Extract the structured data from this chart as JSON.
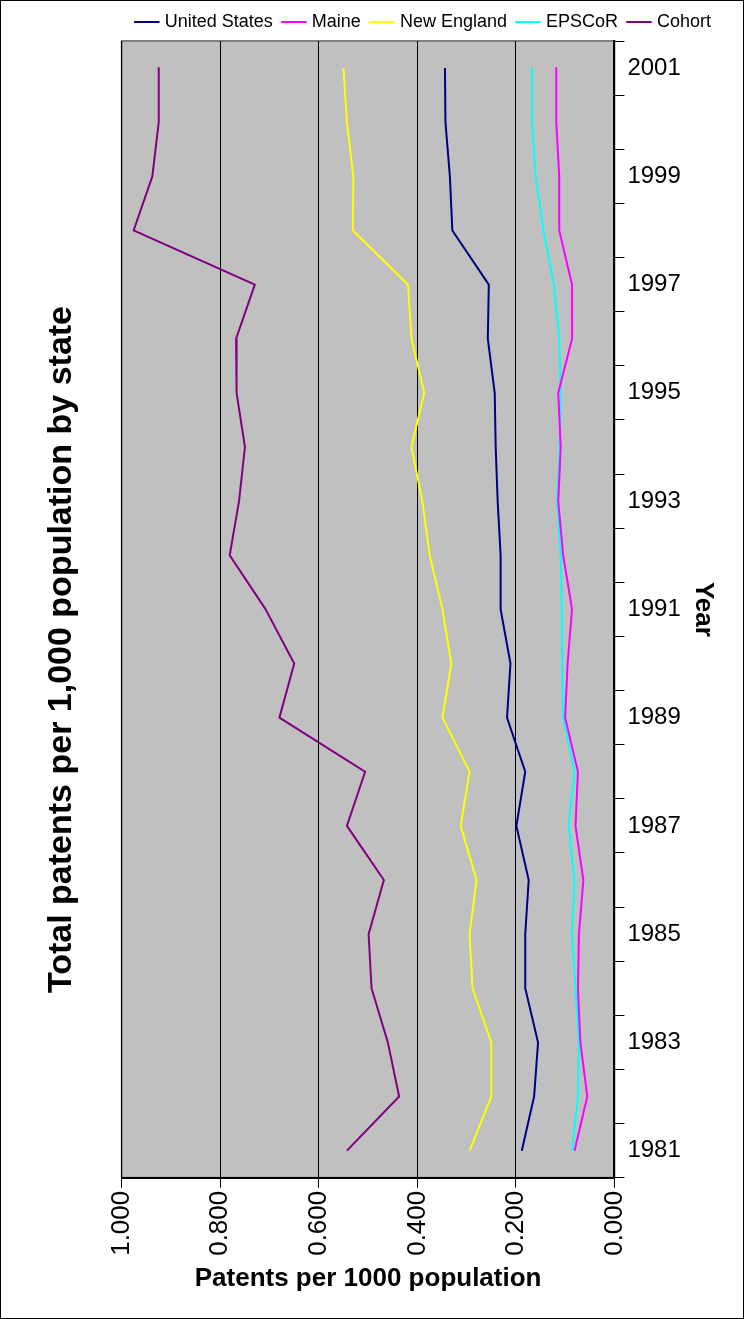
{
  "chart_data": {
    "type": "line",
    "orientation": "horizontal",
    "title": "Total patents per 1,000 population by state",
    "xlabel": "Patents per 1000 population",
    "ylabel": "Year",
    "categories": [
      "2001",
      null,
      "1999",
      null,
      "1997",
      null,
      "1995",
      null,
      "1993",
      null,
      "1991",
      null,
      "1989",
      null,
      "1987",
      null,
      "1985",
      null,
      "1983",
      null,
      "1981"
    ],
    "series": [
      {
        "name": "United States",
        "color": "#000080",
        "values": [
          0.344,
          0.343,
          0.334,
          0.329,
          0.255,
          0.257,
          0.243,
          0.241,
          0.237,
          0.231,
          0.231,
          0.211,
          0.218,
          0.181,
          0.199,
          0.174,
          0.181,
          0.181,
          0.155,
          0.163,
          0.188
        ]
      },
      {
        "name": "Maine",
        "color": "#ff00ff",
        "values": [
          0.118,
          0.118,
          0.112,
          0.112,
          0.086,
          0.086,
          0.114,
          0.109,
          0.114,
          0.104,
          0.086,
          0.095,
          0.1,
          0.074,
          0.079,
          0.063,
          0.072,
          0.074,
          0.069,
          0.055,
          0.081
        ]
      },
      {
        "name": "New England",
        "color": "#ffff00",
        "values": [
          0.55,
          0.543,
          0.53,
          0.531,
          0.419,
          0.412,
          0.386,
          0.412,
          0.39,
          0.375,
          0.349,
          0.331,
          0.349,
          0.294,
          0.312,
          0.28,
          0.294,
          0.288,
          0.25,
          0.25,
          0.294
        ]
      },
      {
        "name": "EPSCoR",
        "color": "#00ffff",
        "values": [
          0.167,
          0.167,
          0.16,
          0.144,
          0.123,
          0.112,
          0.109,
          0.111,
          0.116,
          0.109,
          0.107,
          0.106,
          0.104,
          0.081,
          0.093,
          0.081,
          0.086,
          0.079,
          0.072,
          0.074,
          0.086
        ]
      },
      {
        "name": "Cohort",
        "color": "#800080",
        "values": [
          0.925,
          0.925,
          0.938,
          0.976,
          0.73,
          0.768,
          0.767,
          0.75,
          0.762,
          0.781,
          0.708,
          0.65,
          0.68,
          0.506,
          0.543,
          0.468,
          0.499,
          0.493,
          0.46,
          0.437,
          0.543
        ]
      }
    ],
    "xlim": [
      1,
      0
    ],
    "xticks": [
      {
        "value": 1,
        "label": "1.000"
      },
      {
        "value": 0.8,
        "label": "0.800"
      },
      {
        "value": 0.6,
        "label": "0.600"
      },
      {
        "value": 0.4,
        "label": "0.400"
      },
      {
        "value": 0.2,
        "label": "0.200"
      },
      {
        "value": 0,
        "label": "0.000"
      }
    ],
    "grid": "x",
    "legend": "top right",
    "marker": "none",
    "line_style": "solid"
  }
}
